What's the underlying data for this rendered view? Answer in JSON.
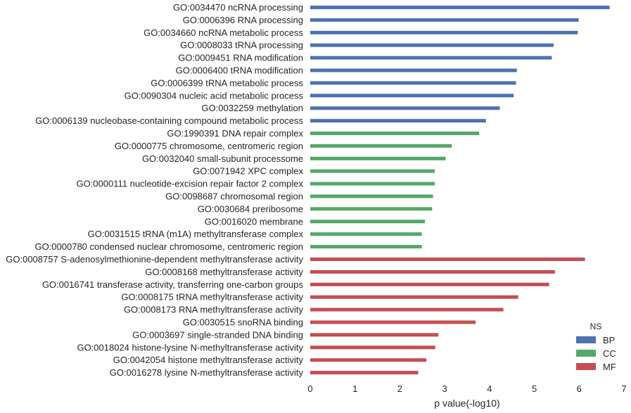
{
  "chart_data": {
    "type": "bar",
    "orientation": "horizontal",
    "xlabel": "p value(-log10)",
    "xlim": [
      0,
      7
    ],
    "xticks": [
      "0",
      "1",
      "2",
      "3",
      "4",
      "5",
      "6",
      "7"
    ],
    "grid": false,
    "legend": {
      "title": "NS",
      "placement": "bottom-right",
      "entries": [
        {
          "name": "BP",
          "color": "#4c72b0"
        },
        {
          "name": "CC",
          "color": "#55a868"
        },
        {
          "name": "MF",
          "color": "#c44e52"
        }
      ]
    },
    "bars": [
      {
        "label": "GO:0034470 ncRNA processing",
        "value": 6.68,
        "ns": "BP"
      },
      {
        "label": "GO:0006396 RNA processing",
        "value": 5.99,
        "ns": "BP"
      },
      {
        "label": "GO:0034660 ncRNA metabolic process",
        "value": 5.97,
        "ns": "BP"
      },
      {
        "label": "GO:0008033 tRNA processing",
        "value": 5.43,
        "ns": "BP"
      },
      {
        "label": "GO:0009451 RNA modification",
        "value": 5.39,
        "ns": "BP"
      },
      {
        "label": "GO:0006400 tRNA modification",
        "value": 4.61,
        "ns": "BP"
      },
      {
        "label": "GO:0006399 tRNA metabolic process",
        "value": 4.59,
        "ns": "BP"
      },
      {
        "label": "GO:0090304 nucleic acid metabolic process",
        "value": 4.54,
        "ns": "BP"
      },
      {
        "label": "GO:0032259 methylation",
        "value": 4.23,
        "ns": "BP"
      },
      {
        "label": "GO:0006139 nucleobase-containing compound metabolic process",
        "value": 3.92,
        "ns": "BP"
      },
      {
        "label": "GO:1990391 DNA repair complex",
        "value": 3.77,
        "ns": "CC"
      },
      {
        "label": "GO:0000775 chromosome, centromeric region",
        "value": 3.16,
        "ns": "CC"
      },
      {
        "label": "GO:0032040 small-subunit processome",
        "value": 3.02,
        "ns": "CC"
      },
      {
        "label": "GO:0071942 XPC complex",
        "value": 2.78,
        "ns": "CC"
      },
      {
        "label": "GO:0000111 nucleotide-excision repair factor 2 complex",
        "value": 2.78,
        "ns": "CC"
      },
      {
        "label": "GO:0098687 chromosomal region",
        "value": 2.74,
        "ns": "CC"
      },
      {
        "label": "GO:0030684 preribosome",
        "value": 2.72,
        "ns": "CC"
      },
      {
        "label": "GO:0016020 membrane",
        "value": 2.56,
        "ns": "CC"
      },
      {
        "label": "GO:0031515 tRNA (m1A) methyltransferase complex",
        "value": 2.49,
        "ns": "CC"
      },
      {
        "label": "GO:0000780 condensed nuclear chromosome, centromeric region",
        "value": 2.49,
        "ns": "CC"
      },
      {
        "label": "GO:0008757 S-adenosylmethionine-dependent methyltransferase activity",
        "value": 6.13,
        "ns": "MF"
      },
      {
        "label": "GO:0008168 methyltransferase activity",
        "value": 5.46,
        "ns": "MF"
      },
      {
        "label": "GO:0016741 transferase activity, transferring one-carbon groups",
        "value": 5.33,
        "ns": "MF"
      },
      {
        "label": "GO:0008175 tRNA methyltransferase activity",
        "value": 4.64,
        "ns": "MF"
      },
      {
        "label": "GO:0008173 RNA methyltransferase activity",
        "value": 4.31,
        "ns": "MF"
      },
      {
        "label": "GO:0030515 snoRNA binding",
        "value": 3.69,
        "ns": "MF"
      },
      {
        "label": "GO:0003697 single-stranded DNA binding",
        "value": 2.86,
        "ns": "MF"
      },
      {
        "label": "GO:0018024 histone-lysine N-methyltransferase activity",
        "value": 2.79,
        "ns": "MF"
      },
      {
        "label": "GO:0042054 histone methyltransferase activity",
        "value": 2.59,
        "ns": "MF"
      },
      {
        "label": "GO:0016278 lysine N-methyltransferase activity",
        "value": 2.41,
        "ns": "MF"
      }
    ]
  }
}
